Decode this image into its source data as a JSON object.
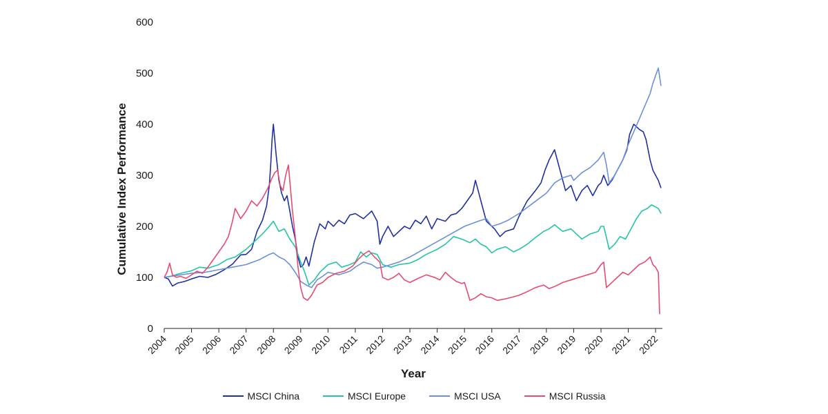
{
  "chart_data": {
    "type": "line",
    "title": "",
    "xlabel": "Year",
    "ylabel": "Cumulative Index Performance",
    "xlim": [
      2004,
      2022.25
    ],
    "ylim": [
      0,
      600
    ],
    "yticks": [
      0,
      100,
      200,
      300,
      400,
      500,
      600
    ],
    "xticks": [
      "2004",
      "2005",
      "2006",
      "2007",
      "2008",
      "2009",
      "2010",
      "2011",
      "2012",
      "2013",
      "2014",
      "2015",
      "2016",
      "2017",
      "2018",
      "2019",
      "2020",
      "2021",
      "2022"
    ],
    "grid": false,
    "legend_position": "bottom",
    "series": [
      {
        "name": "MSCI China",
        "color": "#1f2f9e",
        "x": [
          2004.0,
          2004.15,
          2004.3,
          2004.5,
          2004.75,
          2005.0,
          2005.3,
          2005.6,
          2005.9,
          2006.2,
          2006.5,
          2006.8,
          2007.0,
          2007.2,
          2007.4,
          2007.6,
          2007.75,
          2007.85,
          2007.9,
          2007.95,
          2008.0,
          2008.1,
          2008.2,
          2008.3,
          2008.4,
          2008.5,
          2008.6,
          2008.7,
          2008.8,
          2008.9,
          2009.0,
          2009.1,
          2009.2,
          2009.3,
          2009.5,
          2009.7,
          2009.9,
          2010.0,
          2010.2,
          2010.4,
          2010.6,
          2010.8,
          2011.0,
          2011.3,
          2011.6,
          2011.8,
          2011.9,
          2012.0,
          2012.2,
          2012.4,
          2012.6,
          2012.8,
          2013.0,
          2013.2,
          2013.4,
          2013.6,
          2013.8,
          2014.0,
          2014.3,
          2014.5,
          2014.7,
          2014.9,
          2015.1,
          2015.3,
          2015.4,
          2015.5,
          2015.6,
          2015.8,
          2016.0,
          2016.1,
          2016.3,
          2016.5,
          2016.8,
          2017.0,
          2017.3,
          2017.6,
          2017.8,
          2017.95,
          2018.1,
          2018.3,
          2018.5,
          2018.7,
          2018.9,
          2019.1,
          2019.3,
          2019.5,
          2019.7,
          2019.9,
          2020.0,
          2020.1,
          2020.25,
          2020.4,
          2020.6,
          2020.8,
          2020.95,
          2021.05,
          2021.2,
          2021.4,
          2021.55,
          2021.65,
          2021.8,
          2021.9,
          2022.0,
          2022.1,
          2022.2
        ],
        "values": [
          100,
          97,
          83,
          89,
          92,
          97,
          102,
          100,
          106,
          115,
          126,
          144,
          145,
          155,
          190,
          212,
          240,
          280,
          320,
          370,
          400,
          340,
          290,
          265,
          250,
          260,
          230,
          200,
          175,
          140,
          120,
          125,
          140,
          122,
          170,
          205,
          195,
          210,
          200,
          212,
          205,
          222,
          225,
          215,
          230,
          210,
          165,
          180,
          200,
          180,
          190,
          200,
          195,
          212,
          205,
          220,
          195,
          215,
          210,
          222,
          225,
          235,
          250,
          265,
          290,
          270,
          250,
          210,
          200,
          195,
          180,
          190,
          195,
          220,
          250,
          270,
          285,
          310,
          330,
          350,
          310,
          270,
          280,
          250,
          270,
          280,
          260,
          280,
          285,
          300,
          280,
          290,
          310,
          330,
          350,
          380,
          400,
          390,
          385,
          370,
          330,
          310,
          300,
          290,
          275
        ]
      },
      {
        "name": "MSCI Europe",
        "color": "#21c5a5",
        "x": [
          2004.0,
          2004.3,
          2004.6,
          2005.0,
          2005.3,
          2005.6,
          2006.0,
          2006.3,
          2006.6,
          2007.0,
          2007.3,
          2007.6,
          2007.85,
          2008.0,
          2008.2,
          2008.4,
          2008.6,
          2008.8,
          2009.0,
          2009.15,
          2009.3,
          2009.5,
          2009.7,
          2010.0,
          2010.3,
          2010.5,
          2010.8,
          2011.0,
          2011.2,
          2011.4,
          2011.6,
          2011.8,
          2012.0,
          2012.3,
          2012.6,
          2013.0,
          2013.3,
          2013.6,
          2014.0,
          2014.3,
          2014.6,
          2014.9,
          2015.2,
          2015.4,
          2015.6,
          2015.8,
          2016.0,
          2016.2,
          2016.5,
          2016.8,
          2017.0,
          2017.3,
          2017.6,
          2017.9,
          2018.1,
          2018.3,
          2018.6,
          2018.9,
          2019.1,
          2019.3,
          2019.6,
          2019.9,
          2020.0,
          2020.1,
          2020.2,
          2020.3,
          2020.5,
          2020.7,
          2020.9,
          2021.1,
          2021.3,
          2021.5,
          2021.7,
          2021.85,
          2022.0,
          2022.1,
          2022.2
        ],
        "values": [
          100,
          103,
          108,
          113,
          120,
          118,
          125,
          135,
          140,
          155,
          170,
          185,
          200,
          210,
          190,
          195,
          175,
          160,
          130,
          110,
          85,
          95,
          110,
          125,
          130,
          120,
          125,
          130,
          150,
          140,
          148,
          145,
          125,
          120,
          125,
          128,
          135,
          145,
          155,
          165,
          180,
          175,
          168,
          175,
          165,
          160,
          148,
          155,
          160,
          150,
          155,
          165,
          178,
          190,
          195,
          203,
          190,
          195,
          185,
          175,
          185,
          190,
          200,
          200,
          178,
          155,
          165,
          180,
          175,
          195,
          215,
          230,
          235,
          242,
          238,
          235,
          225
        ]
      },
      {
        "name": "MSCI USA",
        "color": "#6b8fd8",
        "x": [
          2004.0,
          2004.5,
          2005.0,
          2005.5,
          2006.0,
          2006.5,
          2007.0,
          2007.5,
          2007.85,
          2008.0,
          2008.2,
          2008.4,
          2008.6,
          2008.8,
          2009.0,
          2009.2,
          2009.4,
          2009.6,
          2009.8,
          2010.0,
          2010.4,
          2010.8,
          2011.0,
          2011.3,
          2011.6,
          2011.8,
          2012.0,
          2012.3,
          2012.6,
          2013.0,
          2013.5,
          2014.0,
          2014.5,
          2015.0,
          2015.5,
          2015.8,
          2016.0,
          2016.3,
          2016.6,
          2017.0,
          2017.5,
          2018.0,
          2018.3,
          2018.6,
          2018.9,
          2019.0,
          2019.3,
          2019.6,
          2019.9,
          2020.1,
          2020.2,
          2020.3,
          2020.5,
          2020.8,
          2021.0,
          2021.2,
          2021.4,
          2021.6,
          2021.8,
          2021.9,
          2022.0,
          2022.1,
          2022.2
        ],
        "values": [
          100,
          104,
          108,
          110,
          115,
          120,
          125,
          135,
          145,
          148,
          140,
          135,
          125,
          110,
          92,
          85,
          80,
          95,
          102,
          110,
          105,
          112,
          120,
          130,
          125,
          118,
          120,
          125,
          130,
          140,
          155,
          170,
          185,
          200,
          210,
          215,
          200,
          205,
          212,
          225,
          245,
          265,
          285,
          295,
          300,
          290,
          305,
          315,
          330,
          345,
          320,
          285,
          300,
          330,
          360,
          385,
          410,
          435,
          460,
          480,
          495,
          510,
          475
        ]
      },
      {
        "name": "MSCI Russia",
        "color": "#e84a6e",
        "x": [
          2004.0,
          2004.1,
          2004.2,
          2004.3,
          2004.45,
          2004.6,
          2004.8,
          2005.0,
          2005.2,
          2005.4,
          2005.6,
          2005.8,
          2006.0,
          2006.2,
          2006.35,
          2006.5,
          2006.6,
          2006.8,
          2007.0,
          2007.2,
          2007.4,
          2007.6,
          2007.8,
          2007.95,
          2008.05,
          2008.15,
          2008.25,
          2008.35,
          2008.45,
          2008.55,
          2008.7,
          2008.8,
          2008.9,
          2009.0,
          2009.1,
          2009.25,
          2009.4,
          2009.6,
          2009.8,
          2010.0,
          2010.3,
          2010.6,
          2010.9,
          2011.1,
          2011.3,
          2011.5,
          2011.7,
          2011.9,
          2012.0,
          2012.2,
          2012.4,
          2012.6,
          2012.8,
          2013.0,
          2013.3,
          2013.6,
          2013.9,
          2014.1,
          2014.3,
          2014.5,
          2014.7,
          2014.9,
          2015.0,
          2015.2,
          2015.4,
          2015.6,
          2015.8,
          2016.0,
          2016.2,
          2016.5,
          2016.8,
          2017.0,
          2017.3,
          2017.6,
          2017.9,
          2018.1,
          2018.3,
          2018.6,
          2018.9,
          2019.2,
          2019.5,
          2019.8,
          2020.0,
          2020.1,
          2020.2,
          2020.4,
          2020.6,
          2020.8,
          2021.0,
          2021.2,
          2021.4,
          2021.6,
          2021.8,
          2021.9,
          2022.0,
          2022.1,
          2022.15
        ],
        "values": [
          100,
          110,
          128,
          105,
          100,
          102,
          98,
          105,
          112,
          108,
          120,
          135,
          150,
          165,
          180,
          210,
          235,
          215,
          230,
          250,
          240,
          255,
          275,
          295,
          305,
          310,
          280,
          270,
          300,
          320,
          230,
          180,
          120,
          80,
          60,
          55,
          65,
          85,
          90,
          100,
          108,
          112,
          122,
          135,
          145,
          152,
          140,
          130,
          100,
          95,
          100,
          108,
          95,
          90,
          98,
          105,
          100,
          95,
          110,
          100,
          92,
          88,
          90,
          55,
          60,
          68,
          62,
          60,
          55,
          58,
          62,
          65,
          72,
          80,
          85,
          78,
          82,
          90,
          95,
          100,
          105,
          110,
          125,
          130,
          80,
          90,
          100,
          110,
          105,
          115,
          125,
          130,
          140,
          125,
          120,
          110,
          28
        ]
      }
    ]
  }
}
